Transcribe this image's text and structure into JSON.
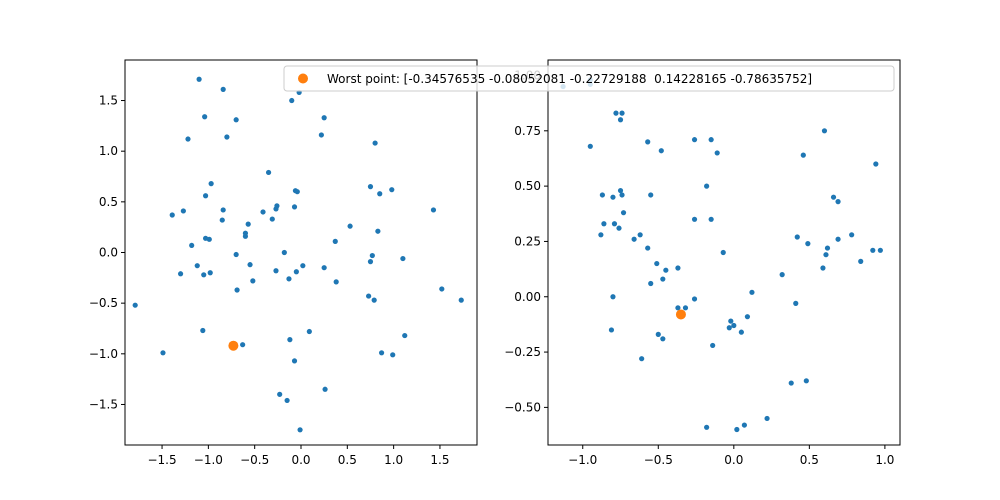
{
  "colors": {
    "points": "#1f77b4",
    "worst": "#ff7f0e",
    "axis": "#000000"
  },
  "legend": {
    "label": "Worst point: [-0.34576535 -0.08052081 -0.22729188  0.14228165 -0.78635752]",
    "placement": "top-right"
  },
  "chart_data": [
    {
      "type": "scatter",
      "title": "",
      "xlabel": "",
      "ylabel": "",
      "xlim": [
        -1.9,
        1.9
      ],
      "ylim": [
        -1.9,
        1.9
      ],
      "xticks": [
        -1.5,
        -1.0,
        -0.5,
        0.0,
        0.5,
        1.0,
        1.5
      ],
      "xtick_labels": [
        "−1.5",
        "−1.0",
        "−0.5",
        "0.0",
        "0.5",
        "1.0",
        "1.5"
      ],
      "yticks": [
        -1.5,
        -1.0,
        -0.5,
        0.0,
        0.5,
        1.0,
        1.5
      ],
      "ytick_labels": [
        "−1.5",
        "−1.0",
        "−0.5",
        "0.0",
        "0.5",
        "1.0",
        "1.5"
      ],
      "grid": false,
      "series": [
        {
          "points": [
            [
              -1.1,
              1.71
            ],
            [
              -0.84,
              1.61
            ],
            [
              -0.02,
              1.58
            ],
            [
              -0.1,
              1.5
            ],
            [
              0.25,
              1.33
            ],
            [
              -1.04,
              1.34
            ],
            [
              -0.7,
              1.31
            ],
            [
              -1.22,
              1.12
            ],
            [
              -0.8,
              1.14
            ],
            [
              0.22,
              1.16
            ],
            [
              0.8,
              1.08
            ],
            [
              -0.35,
              0.79
            ],
            [
              -0.97,
              0.68
            ],
            [
              0.75,
              0.65
            ],
            [
              0.98,
              0.62
            ],
            [
              -0.06,
              0.61
            ],
            [
              -0.04,
              0.6
            ],
            [
              -1.03,
              0.56
            ],
            [
              0.85,
              0.58
            ],
            [
              -0.07,
              0.45
            ],
            [
              -1.27,
              0.41
            ],
            [
              -1.39,
              0.37
            ],
            [
              -0.84,
              0.42
            ],
            [
              -0.41,
              0.4
            ],
            [
              -0.27,
              0.43
            ],
            [
              -0.26,
              0.46
            ],
            [
              1.43,
              0.42
            ],
            [
              -0.31,
              0.33
            ],
            [
              -0.85,
              0.32
            ],
            [
              -0.57,
              0.28
            ],
            [
              0.53,
              0.26
            ],
            [
              0.83,
              0.21
            ],
            [
              -0.6,
              0.19
            ],
            [
              -0.6,
              0.16
            ],
            [
              -1.03,
              0.14
            ],
            [
              -0.99,
              0.13
            ],
            [
              -1.18,
              0.07
            ],
            [
              0.37,
              0.11
            ],
            [
              -0.18,
              0.0
            ],
            [
              -0.7,
              -0.02
            ],
            [
              0.77,
              -0.03
            ],
            [
              0.75,
              -0.09
            ],
            [
              1.1,
              -0.06
            ],
            [
              -1.12,
              -0.13
            ],
            [
              -0.55,
              -0.12
            ],
            [
              0.02,
              -0.13
            ],
            [
              0.25,
              -0.15
            ],
            [
              -1.3,
              -0.21
            ],
            [
              -1.05,
              -0.22
            ],
            [
              -0.98,
              -0.2
            ],
            [
              -0.27,
              -0.18
            ],
            [
              -0.05,
              -0.19
            ],
            [
              -0.13,
              -0.26
            ],
            [
              -0.52,
              -0.28
            ],
            [
              0.38,
              -0.29
            ],
            [
              1.52,
              -0.36
            ],
            [
              -0.69,
              -0.37
            ],
            [
              0.73,
              -0.43
            ],
            [
              0.79,
              -0.47
            ],
            [
              1.73,
              -0.47
            ],
            [
              -1.79,
              -0.52
            ],
            [
              1.12,
              -0.82
            ],
            [
              -1.06,
              -0.77
            ],
            [
              0.09,
              -0.78
            ],
            [
              -0.12,
              -0.86
            ],
            [
              -0.63,
              -0.91
            ],
            [
              -1.49,
              -0.99
            ],
            [
              0.87,
              -0.99
            ],
            [
              0.99,
              -1.01
            ],
            [
              -0.07,
              -1.07
            ],
            [
              0.26,
              -1.35
            ],
            [
              -0.23,
              -1.4
            ],
            [
              -0.15,
              -1.46
            ],
            [
              -0.01,
              -1.75
            ]
          ]
        },
        {
          "name": "Worst point",
          "points": [
            [
              -0.73,
              -0.92
            ]
          ]
        }
      ]
    },
    {
      "type": "scatter",
      "title": "",
      "xlabel": "",
      "ylabel": "",
      "xlim": [
        -1.23,
        1.1
      ],
      "ylim": [
        -0.67,
        1.07
      ],
      "xticks": [
        -1.0,
        -0.5,
        0.0,
        0.5,
        1.0
      ],
      "xtick_labels": [
        "−1.0",
        "−0.5",
        "0.0",
        "0.5",
        "1.0"
      ],
      "yticks": [
        -0.5,
        -0.25,
        0.0,
        0.25,
        0.5,
        0.75,
        1.0
      ],
      "ytick_labels": [
        "−0.50",
        "−0.25",
        "0.00",
        "0.25",
        "0.50",
        "0.75",
        "1.00"
      ],
      "grid": false,
      "series": [
        {
          "points": [
            [
              -1.13,
              0.95
            ],
            [
              -0.95,
              0.98
            ],
            [
              -0.95,
              0.96
            ],
            [
              -0.78,
              0.83
            ],
            [
              -0.74,
              0.83
            ],
            [
              -0.75,
              0.8
            ],
            [
              -0.95,
              0.68
            ],
            [
              -0.57,
              0.7
            ],
            [
              -0.48,
              0.66
            ],
            [
              -0.26,
              0.71
            ],
            [
              -0.15,
              0.71
            ],
            [
              -0.11,
              0.65
            ],
            [
              0.6,
              0.75
            ],
            [
              -0.87,
              0.46
            ],
            [
              -0.75,
              0.48
            ],
            [
              -0.74,
              0.46
            ],
            [
              -0.8,
              0.45
            ],
            [
              -0.55,
              0.46
            ],
            [
              -0.18,
              0.5
            ],
            [
              0.46,
              0.64
            ],
            [
              0.66,
              0.45
            ],
            [
              0.69,
              0.43
            ],
            [
              0.94,
              0.6
            ],
            [
              -0.73,
              0.38
            ],
            [
              -0.86,
              0.33
            ],
            [
              -0.79,
              0.33
            ],
            [
              -0.76,
              0.31
            ],
            [
              -0.88,
              0.28
            ],
            [
              -0.66,
              0.26
            ],
            [
              -0.62,
              0.28
            ],
            [
              -0.26,
              0.35
            ],
            [
              -0.15,
              0.35
            ],
            [
              0.42,
              0.27
            ],
            [
              0.49,
              0.24
            ],
            [
              0.62,
              0.22
            ],
            [
              0.61,
              0.19
            ],
            [
              0.78,
              0.28
            ],
            [
              0.69,
              0.26
            ],
            [
              -0.57,
              0.22
            ],
            [
              -0.07,
              0.2
            ],
            [
              -0.51,
              0.15
            ],
            [
              -0.45,
              0.12
            ],
            [
              -0.37,
              0.13
            ],
            [
              0.59,
              0.13
            ],
            [
              0.92,
              0.21
            ],
            [
              0.97,
              0.21
            ],
            [
              0.84,
              0.16
            ],
            [
              -0.55,
              0.06
            ],
            [
              -0.47,
              0.08
            ],
            [
              0.32,
              0.1
            ],
            [
              -0.8,
              0.0
            ],
            [
              -0.26,
              -0.01
            ],
            [
              0.12,
              0.02
            ],
            [
              0.41,
              -0.03
            ],
            [
              -0.37,
              -0.05
            ],
            [
              -0.32,
              -0.05
            ],
            [
              -0.81,
              -0.15
            ],
            [
              -0.5,
              -0.17
            ],
            [
              -0.47,
              -0.19
            ],
            [
              -0.02,
              -0.11
            ],
            [
              0.09,
              -0.09
            ],
            [
              0.0,
              -0.13
            ],
            [
              -0.03,
              -0.14
            ],
            [
              0.05,
              -0.16
            ],
            [
              -0.14,
              -0.22
            ],
            [
              -0.61,
              -0.28
            ],
            [
              0.38,
              -0.39
            ],
            [
              0.48,
              -0.38
            ],
            [
              0.22,
              -0.55
            ],
            [
              -0.18,
              -0.59
            ],
            [
              0.07,
              -0.58
            ],
            [
              0.02,
              -0.6
            ]
          ]
        },
        {
          "name": "Worst point",
          "points": [
            [
              -0.35,
              -0.08
            ]
          ]
        }
      ]
    }
  ]
}
